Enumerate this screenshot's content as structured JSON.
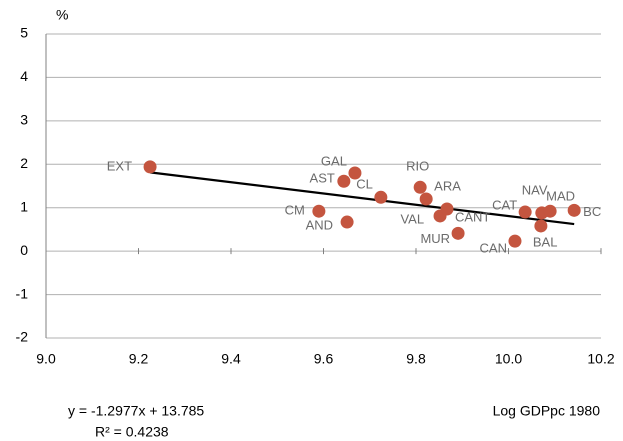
{
  "chart_data": {
    "type": "scatter",
    "y_label": "%",
    "x_label": "Log GDPpc 1980",
    "series": [
      {
        "color": "#c4553f",
        "labels": [
          "EXT",
          "GAL",
          "AST",
          "CL",
          "RIO",
          "ARA",
          "CM",
          "AND",
          "VAL",
          "CANT",
          "MUR",
          "CAN",
          "CAT",
          "NAV",
          "MAD",
          "BAL",
          "BC"
        ],
        "x": [
          9.225,
          9.668,
          9.644,
          9.724,
          9.809,
          9.822,
          9.59,
          9.651,
          9.852,
          9.867,
          9.891,
          10.014,
          10.036,
          10.072,
          10.09,
          10.07,
          10.142
        ],
        "values": [
          1.94,
          1.8,
          1.61,
          1.24,
          1.47,
          1.2,
          0.92,
          0.67,
          0.81,
          0.97,
          0.41,
          0.23,
          0.9,
          0.88,
          0.92,
          0.58,
          0.94
        ]
      }
    ],
    "trendline": {
      "slope": -1.2977,
      "intercept": 13.785,
      "label": "y = -1.2977x + 13.785",
      "r2_label": "R² = 0.4238",
      "color": "#000000"
    },
    "xlim": [
      9.0,
      10.2
    ],
    "ylim": [
      -2,
      5
    ],
    "xticks": [
      {
        "value": 9.0,
        "label": "9.0"
      },
      9.2,
      9.4,
      9.6,
      9.8,
      {
        "value": 10.0,
        "label": "10.0"
      },
      10.2
    ],
    "yticks": [
      -2,
      -1,
      0,
      1,
      2,
      3,
      4,
      5
    ],
    "grid": true
  }
}
